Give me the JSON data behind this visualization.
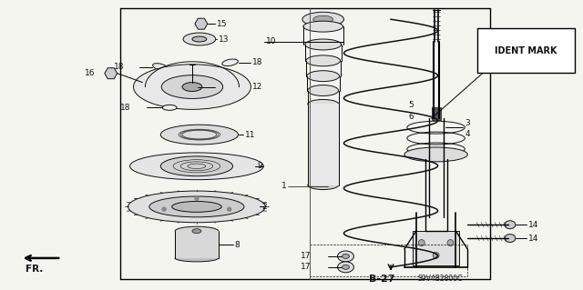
{
  "bg_color": "#f5f5f0",
  "text_color": "#111111",
  "fig_width": 6.4,
  "fig_height": 3.19,
  "dpi": 100,
  "page_label": "B-27",
  "page_code": "S9V4B2800C",
  "ident_mark": "IDENT MARK",
  "fr_label": "FR."
}
